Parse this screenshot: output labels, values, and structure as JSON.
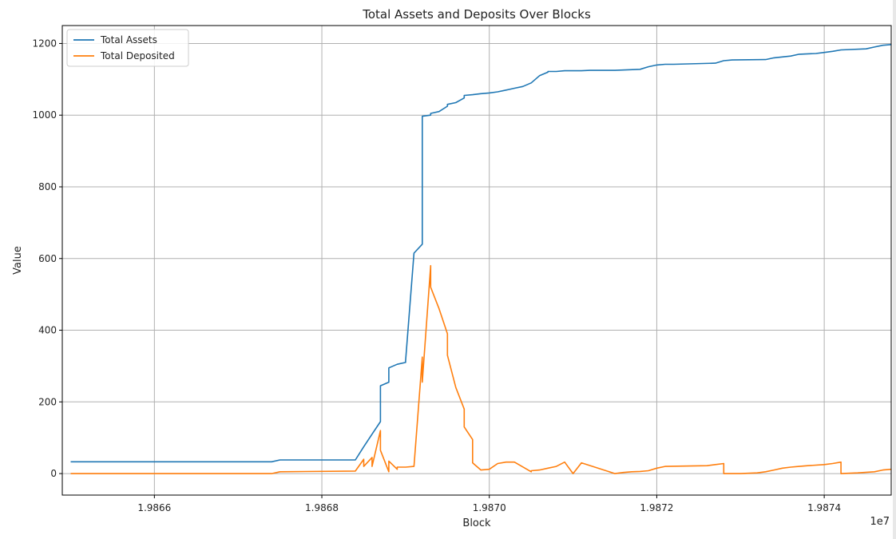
{
  "chart_data": {
    "type": "line",
    "title": "Total Assets and Deposits Over Blocks",
    "xlabel": "Block",
    "ylabel": "Value",
    "x_offset_label": "1e7",
    "xlim": [
      1.98649,
      1.98748
    ],
    "ylim": [
      -60,
      1250
    ],
    "x_ticks": [
      1.9866,
      1.9868,
      1.987,
      1.9872,
      1.9874
    ],
    "x_tick_labels": [
      "1.9866",
      "1.9868",
      "1.9870",
      "1.9872",
      "1.9874"
    ],
    "y_ticks": [
      0,
      200,
      400,
      600,
      800,
      1000,
      1200
    ],
    "y_tick_labels": [
      "0",
      "200",
      "400",
      "600",
      "800",
      "1000",
      "1200"
    ],
    "grid": true,
    "legend_position": "top-left",
    "series": [
      {
        "name": "Total Assets",
        "color": "#1f77b4",
        "x": [
          1.9865,
          1.98674,
          1.98675,
          1.98684,
          1.98685,
          1.98686,
          1.98687,
          1.98687,
          1.98688,
          1.98688,
          1.98689,
          1.98689,
          1.9869,
          1.9869,
          1.98691,
          1.98692,
          1.98692,
          1.98692,
          1.98693,
          1.98693,
          1.98694,
          1.98695,
          1.98695,
          1.98696,
          1.98697,
          1.98697,
          1.98698,
          1.98699,
          1.987,
          1.98701,
          1.98702,
          1.98703,
          1.98704,
          1.98705,
          1.98706,
          1.98707,
          1.98707,
          1.98708,
          1.98709,
          1.98711,
          1.98712,
          1.98714,
          1.98715,
          1.98718,
          1.98719,
          1.9872,
          1.98721,
          1.98722,
          1.98727,
          1.98728,
          1.98729,
          1.98733,
          1.98734,
          1.98736,
          1.98737,
          1.98739,
          1.9874,
          1.98741,
          1.98742,
          1.98745,
          1.98746,
          1.98747,
          1.98748
        ],
        "y": [
          33,
          33,
          38,
          38,
          75,
          110,
          145,
          245,
          255,
          295,
          305,
          305,
          310,
          315,
          615,
          640,
          995,
          997,
          1000,
          1005,
          1010,
          1025,
          1030,
          1035,
          1048,
          1055,
          1057,
          1060,
          1062,
          1065,
          1070,
          1075,
          1080,
          1090,
          1110,
          1120,
          1122,
          1122,
          1124,
          1124,
          1125,
          1125,
          1125,
          1128,
          1135,
          1140,
          1142,
          1142,
          1145,
          1152,
          1154,
          1155,
          1160,
          1165,
          1170,
          1172,
          1175,
          1178,
          1182,
          1185,
          1190,
          1195,
          1197
        ]
      },
      {
        "name": "Total Deposited",
        "color": "#ff7f0e",
        "x": [
          1.9865,
          1.98674,
          1.98675,
          1.98684,
          1.98685,
          1.98685,
          1.98686,
          1.98686,
          1.98687,
          1.98687,
          1.98688,
          1.98688,
          1.98689,
          1.98689,
          1.9869,
          1.98691,
          1.98692,
          1.98692,
          1.98693,
          1.98693,
          1.98694,
          1.98695,
          1.98695,
          1.98696,
          1.98697,
          1.98697,
          1.98698,
          1.98698,
          1.98699,
          1.987,
          1.98701,
          1.98702,
          1.98703,
          1.98705,
          1.98705,
          1.98706,
          1.98707,
          1.98708,
          1.98709,
          1.9871,
          1.98711,
          1.98715,
          1.98716,
          1.98717,
          1.98718,
          1.98719,
          1.9872,
          1.98721,
          1.98726,
          1.98727,
          1.98728,
          1.98728,
          1.9873,
          1.98732,
          1.98733,
          1.98734,
          1.98735,
          1.98736,
          1.98737,
          1.98738,
          1.9874,
          1.98741,
          1.98742,
          1.98742,
          1.98744,
          1.98746,
          1.98747,
          1.98748
        ],
        "y": [
          0,
          0,
          5,
          7,
          40,
          20,
          45,
          20,
          120,
          65,
          5,
          35,
          12,
          18,
          18,
          20,
          325,
          255,
          580,
          520,
          460,
          390,
          330,
          240,
          180,
          130,
          95,
          30,
          10,
          12,
          28,
          32,
          32,
          5,
          8,
          10,
          15,
          20,
          32,
          0,
          30,
          0,
          3,
          5,
          6,
          8,
          15,
          20,
          22,
          25,
          28,
          0,
          0,
          2,
          5,
          10,
          15,
          18,
          20,
          22,
          25,
          28,
          32,
          0,
          2,
          5,
          10,
          12
        ]
      }
    ]
  }
}
